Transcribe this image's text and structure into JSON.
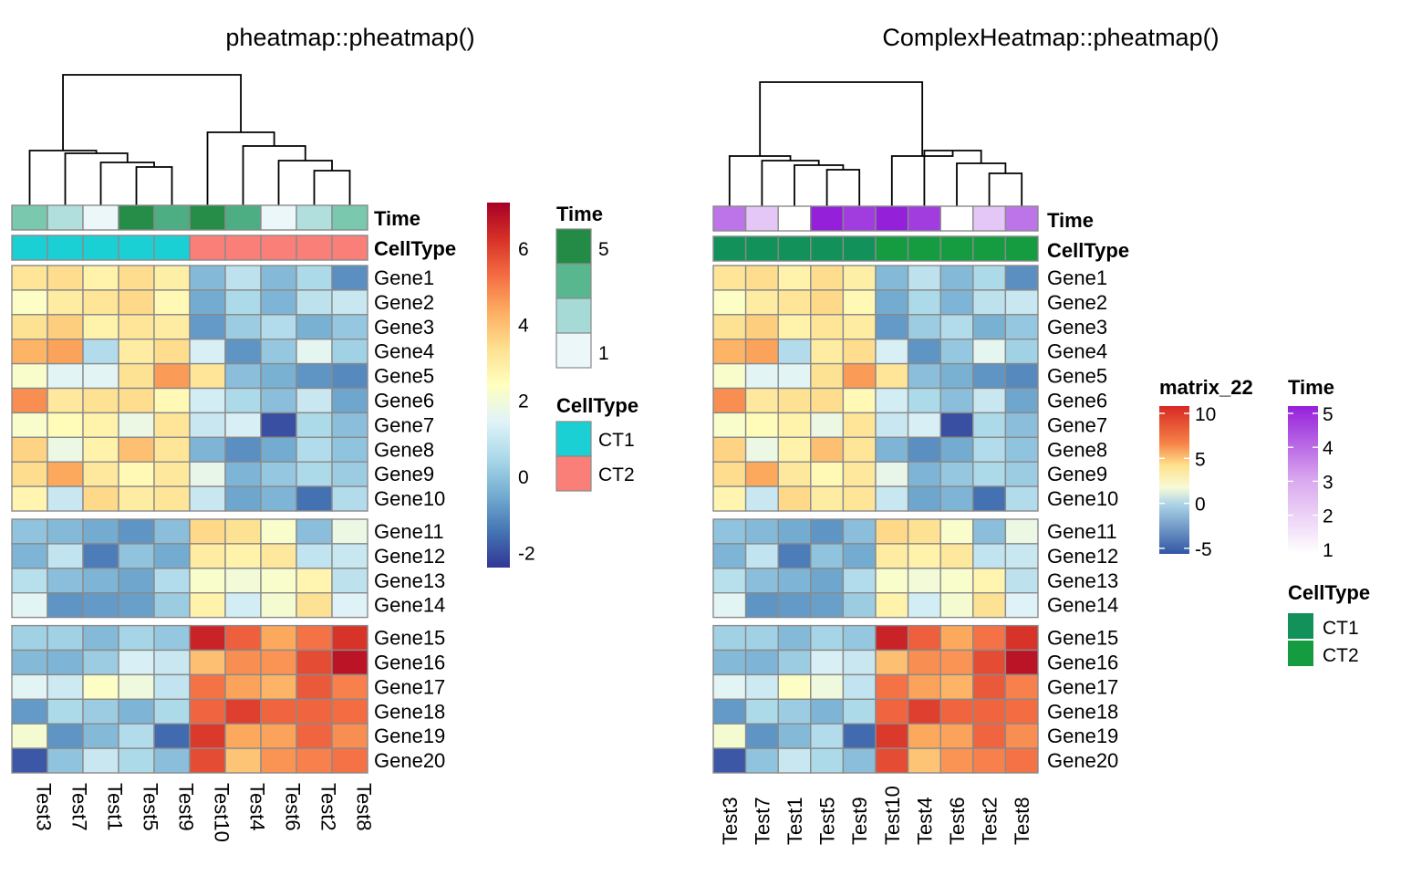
{
  "chart_data": [
    {
      "type": "heatmap",
      "title": "pheatmap::pheatmap()",
      "columns": [
        "Test3",
        "Test7",
        "Test1",
        "Test5",
        "Test9",
        "Test10",
        "Test4",
        "Test6",
        "Test2",
        "Test8"
      ],
      "rows": [
        "Gene1",
        "Gene2",
        "Gene3",
        "Gene4",
        "Gene5",
        "Gene6",
        "Gene7",
        "Gene8",
        "Gene9",
        "Gene10",
        "Gene11",
        "Gene12",
        "Gene13",
        "Gene14",
        "Gene15",
        "Gene16",
        "Gene17",
        "Gene18",
        "Gene19",
        "Gene20"
      ],
      "row_split_after": [
        10,
        14
      ],
      "values": [
        [
          3.2,
          3.4,
          2.8,
          3.4,
          2.9,
          -0.2,
          0.8,
          -0.2,
          0.5,
          -1.0
        ],
        [
          2.3,
          3.0,
          3.2,
          3.5,
          2.6,
          -0.5,
          0.5,
          -0.3,
          0.8,
          1.0
        ],
        [
          3.3,
          3.7,
          2.8,
          3.2,
          3.0,
          -0.8,
          0.2,
          0.6,
          -0.4,
          0.1
        ],
        [
          4.2,
          4.5,
          0.6,
          3.0,
          3.4,
          1.3,
          -0.9,
          0.1,
          1.6,
          0.3
        ],
        [
          2.2,
          1.5,
          1.5,
          3.3,
          4.6,
          3.2,
          -0.1,
          -0.4,
          -0.9,
          -1.1
        ],
        [
          4.8,
          3.1,
          3.3,
          3.4,
          2.6,
          1.2,
          0.5,
          -0.1,
          1.0,
          -0.6
        ],
        [
          2.2,
          2.5,
          2.8,
          1.8,
          3.2,
          1.0,
          1.3,
          -2.0,
          0.5,
          -0.1
        ],
        [
          3.6,
          1.8,
          2.8,
          4.0,
          3.2,
          -0.3,
          -1.0,
          -0.5,
          0.6,
          0.0
        ],
        [
          3.4,
          4.4,
          3.1,
          2.6,
          3.1,
          1.7,
          -0.3,
          0.1,
          0.5,
          0.2
        ],
        [
          2.7,
          1.0,
          3.5,
          3.0,
          3.2,
          1.0,
          -0.6,
          -0.3,
          -1.5,
          0.6
        ],
        [
          0.0,
          -0.2,
          -0.5,
          -0.9,
          -0.1,
          3.5,
          3.3,
          2.2,
          -0.1,
          1.8
        ],
        [
          -0.3,
          0.9,
          -1.3,
          0.0,
          -0.5,
          3.0,
          2.8,
          3.1,
          0.9,
          1.0
        ],
        [
          0.7,
          -0.1,
          -0.3,
          -0.6,
          0.6,
          2.2,
          2.0,
          2.2,
          2.7,
          0.8
        ],
        [
          1.5,
          -0.9,
          -0.8,
          -0.7,
          0.2,
          2.8,
          1.2,
          2.1,
          3.3,
          1.4
        ],
        [
          0.3,
          0.3,
          -0.2,
          0.4,
          0.1,
          6.5,
          5.5,
          4.4,
          5.2,
          6.2
        ],
        [
          -0.2,
          -0.3,
          0.2,
          1.3,
          1.0,
          4.0,
          4.8,
          4.7,
          5.8,
          6.8
        ],
        [
          1.5,
          1.1,
          2.3,
          1.9,
          0.9,
          5.2,
          4.5,
          4.2,
          5.6,
          5.0
        ],
        [
          -0.8,
          0.5,
          0.2,
          -0.3,
          0.5,
          5.4,
          6.0,
          5.4,
          5.4,
          5.3
        ],
        [
          2.1,
          -0.9,
          -0.2,
          0.6,
          -1.6,
          6.1,
          4.4,
          4.5,
          5.4,
          4.8
        ],
        [
          -1.9,
          0.0,
          1.0,
          0.5,
          -0.1,
          5.8,
          3.9,
          4.7,
          5.0,
          5.2
        ]
      ],
      "annotations": {
        "Time": [
          3.5,
          2.0,
          1.0,
          5.0,
          4.5,
          5.0,
          4.5,
          1.0,
          2.0,
          3.5
        ],
        "CellType": [
          "CT1",
          "CT1",
          "CT1",
          "CT1",
          "CT1",
          "CT2",
          "CT2",
          "CT2",
          "CT2",
          "CT2"
        ]
      },
      "colorbar": {
        "ticks": [
          6,
          4,
          2,
          0,
          -2
        ],
        "range": [
          -2.4,
          7.2
        ]
      },
      "legends": {
        "time": {
          "title": "Time",
          "ticks": [
            "5",
            "1"
          ],
          "colors": [
            "#238b45",
            "#59b78f",
            "#a6dad6",
            "#ecf7fa"
          ]
        },
        "celltype": {
          "title": "CellType",
          "items": [
            {
              "label": "CT1",
              "color": "#1bd0d5"
            },
            {
              "label": "CT2",
              "color": "#fa7f79"
            }
          ]
        }
      }
    },
    {
      "type": "heatmap",
      "title": "ComplexHeatmap::pheatmap()",
      "columns": [
        "Test3",
        "Test7",
        "Test1",
        "Test5",
        "Test9",
        "Test10",
        "Test4",
        "Test6",
        "Test2",
        "Test8"
      ],
      "rows": [
        "Gene1",
        "Gene2",
        "Gene3",
        "Gene4",
        "Gene5",
        "Gene6",
        "Gene7",
        "Gene8",
        "Gene9",
        "Gene10",
        "Gene11",
        "Gene12",
        "Gene13",
        "Gene14",
        "Gene15",
        "Gene16",
        "Gene17",
        "Gene18",
        "Gene19",
        "Gene20"
      ],
      "row_split_after": [
        10,
        14
      ],
      "same_values_as_left": true,
      "annotations": {
        "Time": [
          3.5,
          2.0,
          1.0,
          5.0,
          4.5,
          5.0,
          4.5,
          1.0,
          2.0,
          3.5
        ],
        "CellType": [
          "CT1",
          "CT1",
          "CT1",
          "CT1",
          "CT1",
          "CT2",
          "CT2",
          "CT2",
          "CT2",
          "CT2"
        ]
      },
      "legends": {
        "matrix": {
          "title": "matrix_22",
          "ticks": [
            "10",
            "5",
            "0",
            "-5"
          ]
        },
        "time": {
          "title": "Time",
          "ticks": [
            "5",
            "4",
            "3",
            "2",
            "1"
          ]
        },
        "celltype": {
          "title": "CellType",
          "items": [
            {
              "label": "CT1",
              "color": "#12915a"
            },
            {
              "label": "CT2",
              "color": "#169c40"
            }
          ]
        }
      }
    }
  ]
}
